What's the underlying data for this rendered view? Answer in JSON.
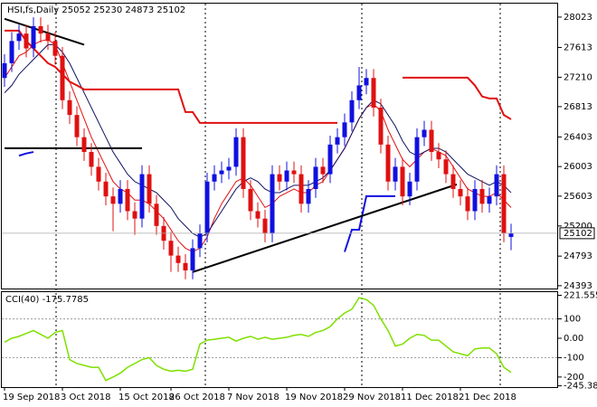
{
  "chart_data": {
    "type": "candlestick",
    "title": "HSI,fs,Daily  25052 25230 24873 25102",
    "categories": [
      "19 Sep 2018",
      null,
      null,
      null,
      null,
      null,
      null,
      null,
      "3 Oct 2018",
      null,
      null,
      null,
      null,
      null,
      null,
      null,
      "15 Oct 2018",
      null,
      null,
      null,
      null,
      null,
      null,
      "26 Oct 2018",
      null,
      null,
      null,
      null,
      null,
      null,
      null,
      "7 Nov 2018",
      null,
      null,
      null,
      null,
      null,
      null,
      null,
      "19 Nov 2018",
      null,
      null,
      null,
      null,
      null,
      null,
      null,
      "29 Nov 2018",
      null,
      null,
      null,
      null,
      null,
      null,
      null,
      "11 Dec 2018",
      null,
      null,
      null,
      null,
      null,
      null,
      null,
      "21 Dec 2018",
      null,
      null,
      null,
      null,
      null,
      null,
      null
    ],
    "open": [
      27200,
      27400,
      27700,
      27800,
      27600,
      27900,
      27800,
      27700,
      27500,
      26900,
      26700,
      26400,
      26200,
      26000,
      25800,
      25600,
      25500,
      25700,
      25400,
      25300,
      25900,
      25500,
      25200,
      25000,
      24800,
      24700,
      24600,
      24900,
      25100,
      25800,
      25900,
      25950,
      26000,
      26400,
      25700,
      25400,
      25300,
      25100,
      25900,
      25800,
      25950,
      25900,
      25500,
      25700,
      26000,
      25900,
      26300,
      26400,
      26600,
      26900,
      27100,
      27200,
      26800,
      26300,
      25800,
      26000,
      25600,
      25800,
      26400,
      26500,
      26200,
      26100,
      25900,
      25700,
      25600,
      25400,
      25700,
      25500,
      25600,
      25900,
      25052
    ],
    "high": [
      27520,
      27820,
      27920,
      27920,
      28020,
      28020,
      27920,
      27820,
      27620,
      27020,
      26820,
      26520,
      26320,
      26120,
      25920,
      25720,
      25820,
      25820,
      25520,
      26020,
      26020,
      25620,
      25320,
      25120,
      24920,
      24820,
      25020,
      25220,
      25920,
      26020,
      26070,
      26120,
      26520,
      26520,
      25820,
      25520,
      25420,
      26020,
      26020,
      26070,
      26070,
      26020,
      25820,
      26120,
      26120,
      26420,
      26520,
      26720,
      27020,
      27350,
      27320,
      27320,
      26920,
      26420,
      26120,
      26120,
      25920,
      26520,
      26620,
      26620,
      26320,
      26220,
      26020,
      25820,
      25720,
      25820,
      25820,
      25720,
      26020,
      26020,
      25230
    ],
    "low": [
      27080,
      27280,
      27580,
      27480,
      27480,
      27680,
      27580,
      27380,
      26780,
      26580,
      26280,
      26080,
      25880,
      25680,
      25480,
      25130,
      25380,
      25280,
      25080,
      25180,
      25380,
      25080,
      24880,
      24580,
      24580,
      24480,
      24480,
      24780,
      24980,
      25680,
      25780,
      25830,
      25880,
      25580,
      25280,
      25180,
      24980,
      24980,
      25680,
      25680,
      25780,
      25380,
      25380,
      25580,
      25780,
      25780,
      26180,
      26280,
      26480,
      26780,
      26980,
      26680,
      26180,
      25680,
      25680,
      25480,
      25480,
      25680,
      26280,
      26080,
      25980,
      25780,
      25580,
      25480,
      25280,
      25280,
      25380,
      25380,
      25480,
      24980,
      24873
    ],
    "close": [
      27400,
      27700,
      27800,
      27600,
      27900,
      27800,
      27700,
      27500,
      26900,
      26700,
      26400,
      26200,
      26000,
      25800,
      25600,
      25500,
      25700,
      25400,
      25300,
      25900,
      25500,
      25200,
      25000,
      24800,
      24700,
      24600,
      24900,
      25100,
      25800,
      25900,
      25950,
      26000,
      26400,
      25700,
      25400,
      25300,
      25100,
      25900,
      25800,
      25950,
      25900,
      25500,
      25700,
      26000,
      25900,
      26300,
      26400,
      26600,
      26900,
      27100,
      27200,
      26800,
      26300,
      25800,
      26000,
      25600,
      25800,
      26400,
      26500,
      26200,
      26100,
      25900,
      25700,
      25600,
      25400,
      25700,
      25500,
      25600,
      25900,
      25100,
      25102
    ],
    "up_color": "#1010e0",
    "down_color": "#e01010",
    "ylim": [
      24355,
      28205
    ],
    "yticks": [
      28023,
      27613,
      27210,
      26813,
      26403,
      26003,
      25603,
      25200,
      24793,
      24393
    ],
    "overlays": [
      {
        "color": "#e01010",
        "values": [
          27200,
          27350,
          27500,
          27550,
          27650,
          27700,
          27720,
          27650,
          27400,
          27150,
          26900,
          26650,
          26400,
          26200,
          26000,
          25800,
          25700,
          25650,
          25550,
          25550,
          25500,
          25400,
          25300,
          25150,
          25000,
          24900,
          24850,
          24900,
          25050,
          25300,
          25500,
          25650,
          25800,
          25850,
          25750,
          25600,
          25450,
          25500,
          25600,
          25650,
          25700,
          25650,
          25650,
          25750,
          25800,
          25950,
          26100,
          26250,
          26450,
          26650,
          26800,
          26850,
          26750,
          26500,
          26300,
          26100,
          26000,
          26100,
          26200,
          26250,
          26200,
          26150,
          26000,
          25850,
          25700,
          25650,
          25600,
          25600,
          25650,
          25550,
          25450
        ]
      },
      {
        "color": "#101060",
        "values": [
          27000,
          27100,
          27250,
          27350,
          27450,
          27550,
          27650,
          27650,
          27550,
          27400,
          27200,
          27000,
          26800,
          26600,
          26400,
          26200,
          26050,
          25900,
          25800,
          25750,
          25700,
          25650,
          25550,
          25450,
          25300,
          25200,
          25100,
          25050,
          25100,
          25250,
          25400,
          25550,
          25700,
          25800,
          25850,
          25800,
          25700,
          25650,
          25650,
          25700,
          25750,
          25750,
          25750,
          25800,
          25850,
          25950,
          26100,
          26250,
          26450,
          26650,
          26800,
          26900,
          26850,
          26700,
          26550,
          26350,
          26200,
          26150,
          26200,
          26250,
          26250,
          26200,
          26100,
          26000,
          25900,
          25850,
          25800,
          25750,
          25800,
          25750,
          25650
        ]
      },
      {
        "color": "#e01010",
        "values": [
          27840,
          27840,
          27840,
          27700,
          27600,
          27500,
          27400,
          27350,
          27250,
          27150,
          27100,
          27046,
          27046,
          27046,
          27046,
          27046,
          27046,
          27046,
          27046,
          27046,
          27046,
          27046,
          27046,
          27046,
          27046,
          26740,
          26740,
          26593,
          26593,
          26593,
          26593,
          26593,
          26593,
          26593,
          26593,
          26593,
          26593,
          26593,
          26593,
          26593,
          26593,
          26593,
          26593,
          26593,
          26593,
          26593,
          26593,
          null,
          null,
          null,
          null,
          null,
          null,
          null,
          null,
          27204,
          27204,
          27204,
          27204,
          27204,
          27204,
          27204,
          27204,
          27204,
          27204,
          27100,
          26950,
          26923,
          26923,
          26700,
          26642
        ]
      },
      {
        "color": "#1010e0",
        "values": [
          null,
          null,
          26150,
          26180,
          26200,
          null,
          null,
          null,
          null,
          null,
          null,
          null,
          null,
          null,
          null,
          null,
          null,
          null,
          null,
          null,
          null,
          null,
          null,
          null,
          null,
          null,
          null,
          null,
          null,
          null,
          null,
          null,
          null,
          null,
          null,
          null,
          null,
          null,
          null,
          null,
          null,
          null,
          null,
          null,
          null,
          null,
          null,
          24850,
          25150,
          25150,
          25603,
          25603,
          25603,
          25603,
          25603,
          null,
          null,
          null,
          null,
          null,
          null,
          null,
          null,
          null,
          null,
          null,
          null,
          null,
          null,
          null,
          null
        ]
      }
    ],
    "trendlines": [
      {
        "x": [
          0,
          11
        ],
        "y": [
          28000,
          27650
        ]
      },
      {
        "x": [
          26,
          62.5
        ],
        "y": [
          24577,
          25762
        ]
      },
      {
        "x": [
          0,
          19
        ],
        "y": [
          26251,
          26251
        ]
      }
    ],
    "cci": {
      "title": "CCI(40) -175.7785",
      "color": "#7fe000",
      "ylim": [
        -252,
        238
      ],
      "yticks": [
        221.5552,
        100,
        {
          "value": 0,
          "label": "0.00"
        },
        -100,
        -200,
        -245.384
      ],
      "levels": [
        100,
        -100
      ],
      "values": [
        -20,
        0,
        10,
        25,
        40,
        20,
        0,
        30,
        40,
        -110,
        -130,
        -140,
        -150,
        -150,
        -218,
        -200,
        -180,
        -150,
        -130,
        -110,
        -100,
        -140,
        -160,
        -170,
        -165,
        -170,
        -160,
        -30,
        -10,
        -5,
        0,
        5,
        -15,
        0,
        10,
        -5,
        5,
        -5,
        0,
        5,
        15,
        20,
        10,
        30,
        40,
        60,
        100,
        130,
        150,
        209,
        200,
        170,
        100,
        40,
        -40,
        -30,
        0,
        20,
        15,
        -10,
        -10,
        -40,
        -70,
        -80,
        -90,
        -55,
        -50,
        -50,
        -80,
        -150,
        -176
      ]
    }
  }
}
